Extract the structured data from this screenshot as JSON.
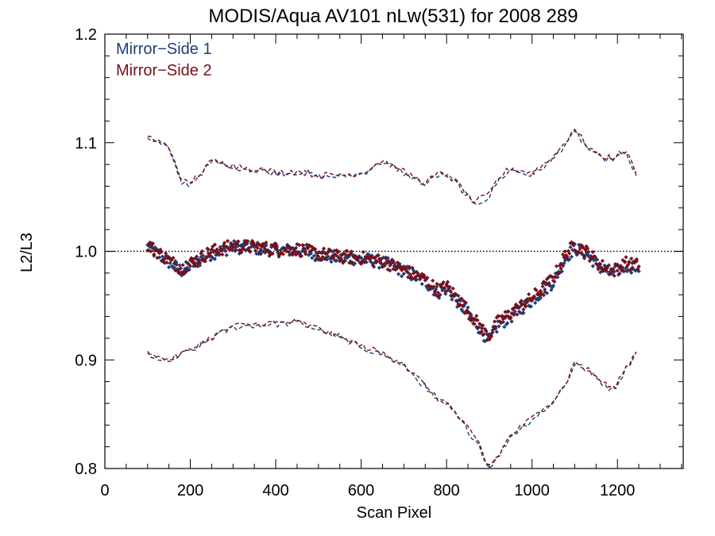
{
  "colors": {
    "background": "#ffffff",
    "axis": "#000000",
    "mirror_side_1": "#1c3f7a",
    "mirror_side_2": "#7a0f17"
  },
  "chart_data": {
    "type": "scatter",
    "title": "MODIS/Aqua AV101 nLw(531) for 2008 289",
    "xlabel": "Scan Pixel",
    "ylabel": "L2/L3",
    "xlim": [
      0,
      1354
    ],
    "ylim": [
      0.8,
      1.2
    ],
    "xticks": [
      0,
      200,
      400,
      600,
      800,
      1000,
      1200
    ],
    "xtick_labels": [
      "0",
      "200",
      "400",
      "600",
      "800",
      "1000",
      "1200"
    ],
    "yticks": [
      0.8,
      0.9,
      1.0,
      1.1,
      1.2
    ],
    "ytick_labels": [
      "0.8",
      "0.9",
      "1.0",
      "1.1",
      "1.2"
    ],
    "reference_line": 1.0,
    "grid": false,
    "legend_position": "top-left",
    "series": [
      {
        "name": "Mirror−Side 1",
        "color": "#1c3f7a",
        "x": [
          100,
          150,
          180,
          200,
          250,
          300,
          350,
          400,
          450,
          500,
          550,
          600,
          650,
          700,
          750,
          780,
          800,
          830,
          860,
          880,
          890,
          900,
          920,
          950,
          1000,
          1050,
          1080,
          1100,
          1130,
          1160,
          1190,
          1220,
          1250
        ],
        "mean": [
          1.004,
          0.99,
          0.982,
          0.987,
          0.998,
          1.004,
          1.003,
          1.001,
          1.001,
          0.997,
          0.994,
          0.993,
          0.99,
          0.982,
          0.972,
          0.962,
          0.966,
          0.952,
          0.938,
          0.928,
          0.922,
          0.918,
          0.932,
          0.94,
          0.955,
          0.972,
          0.995,
          1.003,
          0.997,
          0.985,
          0.98,
          0.987,
          0.985
        ],
        "upper": [
          1.105,
          1.095,
          1.063,
          1.062,
          1.082,
          1.078,
          1.075,
          1.072,
          1.073,
          1.069,
          1.069,
          1.071,
          1.083,
          1.072,
          1.062,
          1.07,
          1.07,
          1.06,
          1.044,
          1.046,
          1.048,
          1.05,
          1.065,
          1.075,
          1.07,
          1.085,
          1.1,
          1.11,
          1.095,
          1.085,
          1.085,
          1.09,
          1.065
        ],
        "lower": [
          0.905,
          0.898,
          0.905,
          0.908,
          0.92,
          0.93,
          0.932,
          0.933,
          0.934,
          0.928,
          0.92,
          0.912,
          0.905,
          0.895,
          0.875,
          0.862,
          0.86,
          0.845,
          0.83,
          0.82,
          0.805,
          0.802,
          0.81,
          0.83,
          0.845,
          0.862,
          0.878,
          0.897,
          0.89,
          0.88,
          0.872,
          0.892,
          0.91
        ]
      },
      {
        "name": "Mirror−Side 2",
        "color": "#7a0f17",
        "x": [
          100,
          150,
          180,
          200,
          250,
          300,
          350,
          400,
          450,
          500,
          550,
          600,
          650,
          700,
          750,
          780,
          800,
          830,
          860,
          880,
          890,
          900,
          920,
          950,
          1000,
          1050,
          1080,
          1100,
          1130,
          1160,
          1190,
          1220,
          1250
        ],
        "mean": [
          1.006,
          0.992,
          0.984,
          0.989,
          1.0,
          1.005,
          1.004,
          1.002,
          1.002,
          0.998,
          0.995,
          0.994,
          0.991,
          0.983,
          0.974,
          0.964,
          0.968,
          0.955,
          0.94,
          0.93,
          0.925,
          0.922,
          0.935,
          0.943,
          0.957,
          0.975,
          0.998,
          1.006,
          0.999,
          0.987,
          0.982,
          0.989,
          0.987
        ],
        "upper": [
          1.106,
          1.096,
          1.064,
          1.063,
          1.083,
          1.079,
          1.076,
          1.073,
          1.074,
          1.07,
          1.07,
          1.072,
          1.084,
          1.073,
          1.063,
          1.071,
          1.071,
          1.061,
          1.046,
          1.048,
          1.05,
          1.052,
          1.067,
          1.077,
          1.072,
          1.087,
          1.102,
          1.112,
          1.097,
          1.087,
          1.087,
          1.092,
          1.067
        ],
        "lower": [
          0.906,
          0.899,
          0.906,
          0.909,
          0.921,
          0.931,
          0.933,
          0.934,
          0.935,
          0.929,
          0.921,
          0.913,
          0.906,
          0.896,
          0.876,
          0.863,
          0.861,
          0.846,
          0.831,
          0.821,
          0.806,
          0.803,
          0.811,
          0.831,
          0.846,
          0.863,
          0.879,
          0.898,
          0.891,
          0.881,
          0.873,
          0.893,
          0.911
        ]
      }
    ]
  }
}
